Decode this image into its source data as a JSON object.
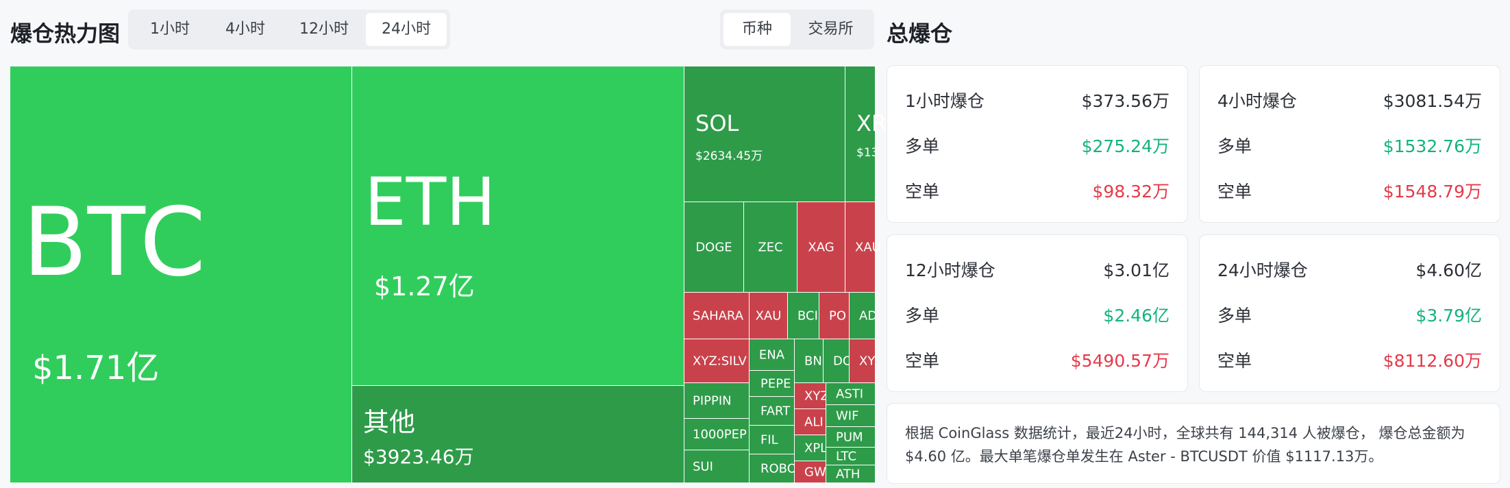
{
  "heatmap": {
    "title": "爆仓热力图",
    "time_tabs": [
      "1小时",
      "4小时",
      "12小时",
      "24小时"
    ],
    "active_time_tab": "24小时",
    "group_tabs": [
      "币种",
      "交易所"
    ],
    "active_group_tab": "币种",
    "tiles": {
      "btc": {
        "symbol": "BTC",
        "amount": "$1.71亿",
        "status": "long-dominant"
      },
      "eth": {
        "symbol": "ETH",
        "amount": "$1.27亿",
        "status": "long-dominant"
      },
      "other": {
        "symbol": "其他",
        "amount": "$3923.46万",
        "status": "long-dominant"
      },
      "sol": {
        "symbol": "SOL",
        "amount": "$2634.45万",
        "status": "long-dominant"
      },
      "xrp": {
        "symbol": "XR",
        "amount": "$13",
        "status": "long-dominant"
      },
      "doge": {
        "symbol": "DOGE"
      },
      "zec": {
        "symbol": "ZEC"
      },
      "xag": {
        "symbol": "XAG"
      },
      "xau_top": {
        "symbol": "XAU"
      },
      "sahara": {
        "symbol": "SAHARA"
      },
      "xau": {
        "symbol": "XAU"
      },
      "bc": {
        "symbol": "BCI"
      },
      "po": {
        "symbol": "PO"
      },
      "ad": {
        "symbol": "AD"
      },
      "xyz_silv": {
        "symbol": "XYZ:SILV"
      },
      "ena": {
        "symbol": "ENA"
      },
      "bn": {
        "symbol": "BN"
      },
      "do": {
        "symbol": "DO"
      },
      "xy": {
        "symbol": "XY"
      },
      "pippin": {
        "symbol": "PIPPIN"
      },
      "pepe": {
        "symbol": "PEPE"
      },
      "xyz2": {
        "symbol": "XYZ"
      },
      "ast": {
        "symbol": "ASTI"
      },
      "wif": {
        "symbol": "WIF"
      },
      "fart": {
        "symbol": "FART"
      },
      "ali": {
        "symbol": "ALI"
      },
      "pum": {
        "symbol": "PUM"
      },
      "p1000": {
        "symbol": "1000PEP"
      },
      "fil": {
        "symbol": "FIL"
      },
      "xpl": {
        "symbol": "XPL"
      },
      "ltc": {
        "symbol": "LTC"
      },
      "sui": {
        "symbol": "SUI"
      },
      "robo": {
        "symbol": "ROBO"
      },
      "gw": {
        "symbol": "GW"
      },
      "ath": {
        "symbol": "ATH"
      }
    }
  },
  "totals": {
    "title": "总爆仓",
    "cards": [
      {
        "label": "1小时爆仓",
        "total": "$373.56万",
        "long_label": "多单",
        "long": "$275.24万",
        "short_label": "空单",
        "short": "$98.32万"
      },
      {
        "label": "4小时爆仓",
        "total": "$3081.54万",
        "long_label": "多单",
        "long": "$1532.76万",
        "short_label": "空单",
        "short": "$1548.79万"
      },
      {
        "label": "12小时爆仓",
        "total": "$3.01亿",
        "long_label": "多单",
        "long": "$2.46亿",
        "short_label": "空单",
        "short": "$5490.57万"
      },
      {
        "label": "24小时爆仓",
        "total": "$4.60亿",
        "long_label": "多单",
        "long": "$3.79亿",
        "short_label": "空单",
        "short": "$8112.60万"
      }
    ],
    "summary": "根据 CoinGlass 数据统计，最近24小时，全球共有 144,314 人被爆仓， 爆仓总金额为 $4.60 亿。最大单笔爆仓单发生在 Aster - BTCUSDT 价值 $1117.13万。"
  },
  "colors": {
    "tile_green_light": "#31cd5c",
    "tile_green_dark": "#2e9b49",
    "tile_red": "#c9424b",
    "long": "#14b27f",
    "short": "#e53949"
  }
}
